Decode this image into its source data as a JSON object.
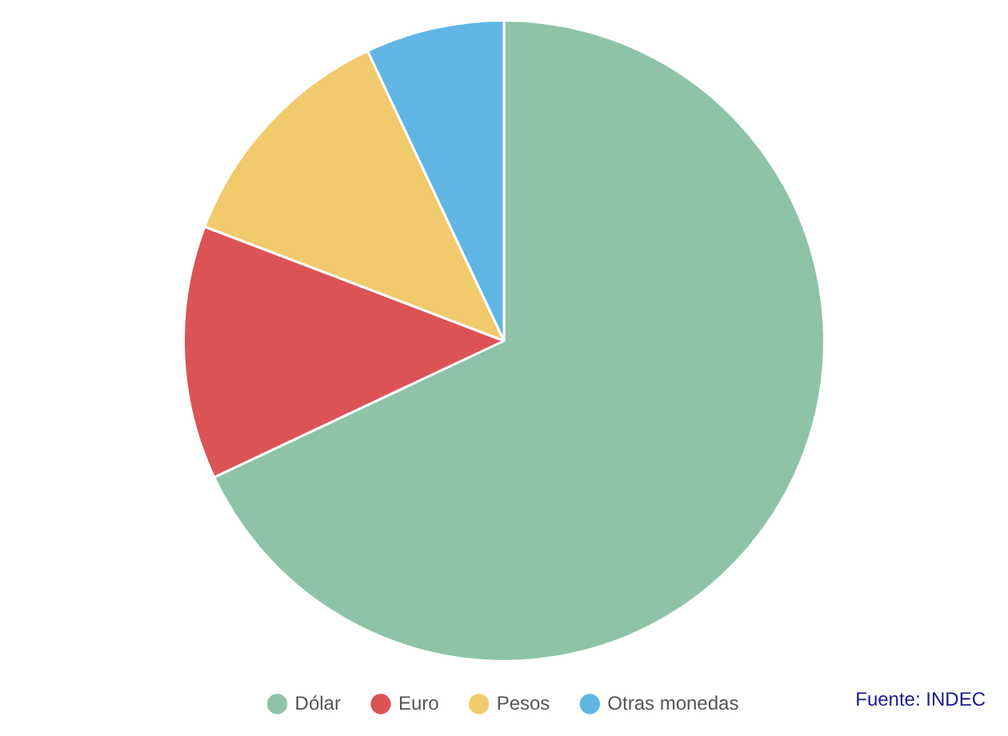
{
  "chart_data": {
    "type": "pie",
    "categories": [
      "Dólar",
      "Euro",
      "Pesos",
      "Otras monedas"
    ],
    "values": [
      68,
      12.8,
      12.2,
      7
    ],
    "colors": [
      "#8ec3a7",
      "#dc5356",
      "#f0ca6b",
      "#5fb6e5"
    ],
    "legend": "bottom",
    "annotations": [
      "Fuente: INDEC"
    ]
  }
}
